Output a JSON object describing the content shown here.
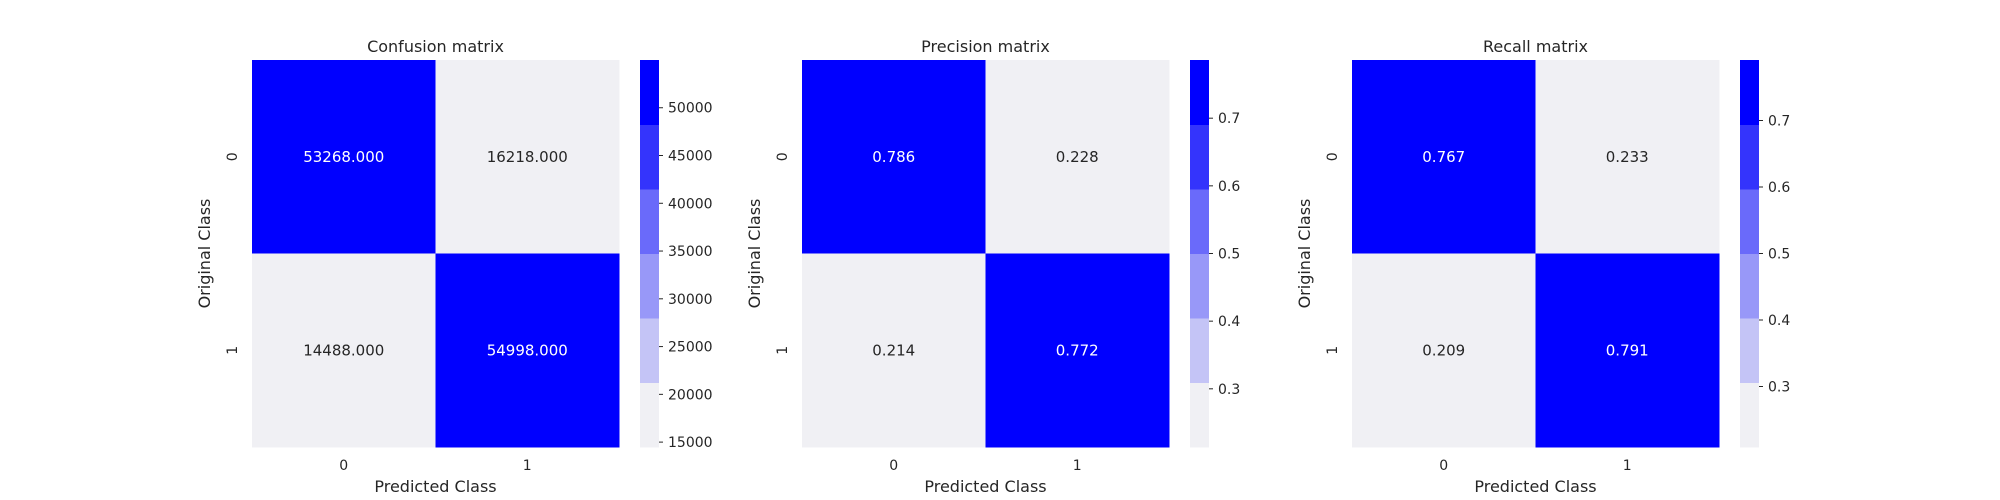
{
  "colors": {
    "background": "#ffffff",
    "text": "#262626",
    "colormap": [
      "#f0f0f4",
      "#c4c4f6",
      "#9898f8",
      "#6a6afa",
      "#3434fc",
      "#0000ff"
    ]
  },
  "chart_data": [
    {
      "type": "heatmap",
      "title": "Confusion matrix",
      "xlabel": "Predicted Class",
      "ylabel": "Original Class",
      "x_ticks": [
        "0",
        "1"
      ],
      "y_ticks": [
        "0",
        "1"
      ],
      "values": [
        [
          53268.0,
          16218.0
        ],
        [
          14488.0,
          54998.0
        ]
      ],
      "cell_labels": [
        [
          "53268.000",
          "16218.000"
        ],
        [
          "14488.000",
          "54998.000"
        ]
      ],
      "colorbar": {
        "range": [
          14488,
          54998
        ],
        "ticks": [
          15000,
          20000,
          25000,
          30000,
          35000,
          40000,
          45000,
          50000
        ],
        "tick_labels": [
          "15000",
          "20000",
          "25000",
          "30000",
          "35000",
          "40000",
          "45000",
          "50000"
        ]
      }
    },
    {
      "type": "heatmap",
      "title": "Precision matrix",
      "xlabel": "Predicted Class",
      "ylabel": "Original Class",
      "x_ticks": [
        "0",
        "1"
      ],
      "y_ticks": [
        "0",
        "1"
      ],
      "values": [
        [
          0.786,
          0.228
        ],
        [
          0.214,
          0.772
        ]
      ],
      "cell_labels": [
        [
          "0.786",
          "0.228"
        ],
        [
          "0.214",
          "0.772"
        ]
      ],
      "colorbar": {
        "range": [
          0.214,
          0.786
        ],
        "ticks": [
          0.3,
          0.4,
          0.5,
          0.6,
          0.7
        ],
        "tick_labels": [
          "0.3",
          "0.4",
          "0.5",
          "0.6",
          "0.7"
        ]
      }
    },
    {
      "type": "heatmap",
      "title": "Recall matrix",
      "xlabel": "Predicted Class",
      "ylabel": "Original Class",
      "x_ticks": [
        "0",
        "1"
      ],
      "y_ticks": [
        "0",
        "1"
      ],
      "values": [
        [
          0.767,
          0.233
        ],
        [
          0.209,
          0.791
        ]
      ],
      "cell_labels": [
        [
          "0.767",
          "0.233"
        ],
        [
          "0.209",
          "0.791"
        ]
      ],
      "colorbar": {
        "range": [
          0.209,
          0.791
        ],
        "ticks": [
          0.3,
          0.4,
          0.5,
          0.6,
          0.7
        ],
        "tick_labels": [
          "0.3",
          "0.4",
          "0.5",
          "0.6",
          "0.7"
        ]
      }
    }
  ]
}
